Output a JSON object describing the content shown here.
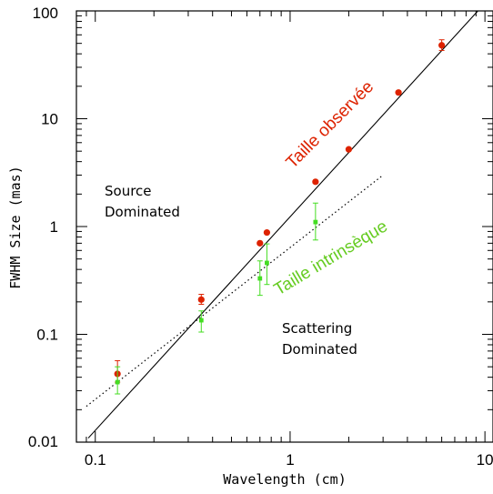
{
  "chart_data": {
    "type": "scatter",
    "xlabel": "Wavelength (cm)",
    "ylabel": "FWHM Size (mas)",
    "xscale": "log",
    "yscale": "log",
    "xlim": [
      0.08,
      11
    ],
    "ylim": [
      0.01,
      100
    ],
    "xticks": [
      {
        "value": 0.1,
        "label": "0.1"
      },
      {
        "value": 1,
        "label": "1"
      },
      {
        "value": 10,
        "label": "10"
      }
    ],
    "yticks": [
      {
        "value": 0.01,
        "label": "0.01"
      },
      {
        "value": 0.1,
        "label": "0.1"
      },
      {
        "value": 1,
        "label": "1"
      },
      {
        "value": 10,
        "label": "10"
      },
      {
        "value": 100,
        "label": "100"
      }
    ],
    "series": [
      {
        "name": "Taille observée",
        "color": "#dd2200",
        "points": [
          {
            "x": 0.13,
            "y": 0.043,
            "err_lo": 0.007,
            "err_hi": 0.014
          },
          {
            "x": 0.35,
            "y": 0.21,
            "err_lo": 0.02,
            "err_hi": 0.025
          },
          {
            "x": 0.7,
            "y": 0.7
          },
          {
            "x": 0.76,
            "y": 0.88
          },
          {
            "x": 1.35,
            "y": 2.6
          },
          {
            "x": 2.0,
            "y": 5.2
          },
          {
            "x": 3.6,
            "y": 17.5
          },
          {
            "x": 6.0,
            "y": 48,
            "err_lo": 5,
            "err_hi": 6
          }
        ]
      },
      {
        "name": "Taille intrinsèque",
        "color": "#44dd22",
        "points": [
          {
            "x": 0.13,
            "y": 0.036,
            "err_lo": 0.008,
            "err_hi": 0.014
          },
          {
            "x": 0.35,
            "y": 0.135,
            "err_lo": 0.03,
            "err_hi": 0.03
          },
          {
            "x": 0.7,
            "y": 0.33,
            "err_lo": 0.1,
            "err_hi": 0.15
          },
          {
            "x": 0.76,
            "y": 0.46,
            "err_lo": 0.17,
            "err_hi": 0.23
          },
          {
            "x": 1.35,
            "y": 1.1,
            "err_lo": 0.35,
            "err_hi": 0.55
          }
        ]
      }
    ],
    "lines": [
      {
        "style": "solid",
        "color": "#000000",
        "x": [
          0.092,
          9.2
        ],
        "y": [
          0.0109,
          100
        ]
      },
      {
        "style": "dotted",
        "color": "#000000",
        "x": [
          0.09,
          3.0
        ],
        "y": [
          0.0215,
          3.0
        ]
      }
    ],
    "annotations": [
      {
        "text": "Taille observée",
        "color": "#dd2200"
      },
      {
        "text": "Taille intrinsèque",
        "color": "#66cc22"
      }
    ],
    "regions": [
      {
        "lines": [
          "Source",
          "Dominated"
        ]
      },
      {
        "lines": [
          "Scattering",
          "Dominated"
        ]
      }
    ]
  }
}
